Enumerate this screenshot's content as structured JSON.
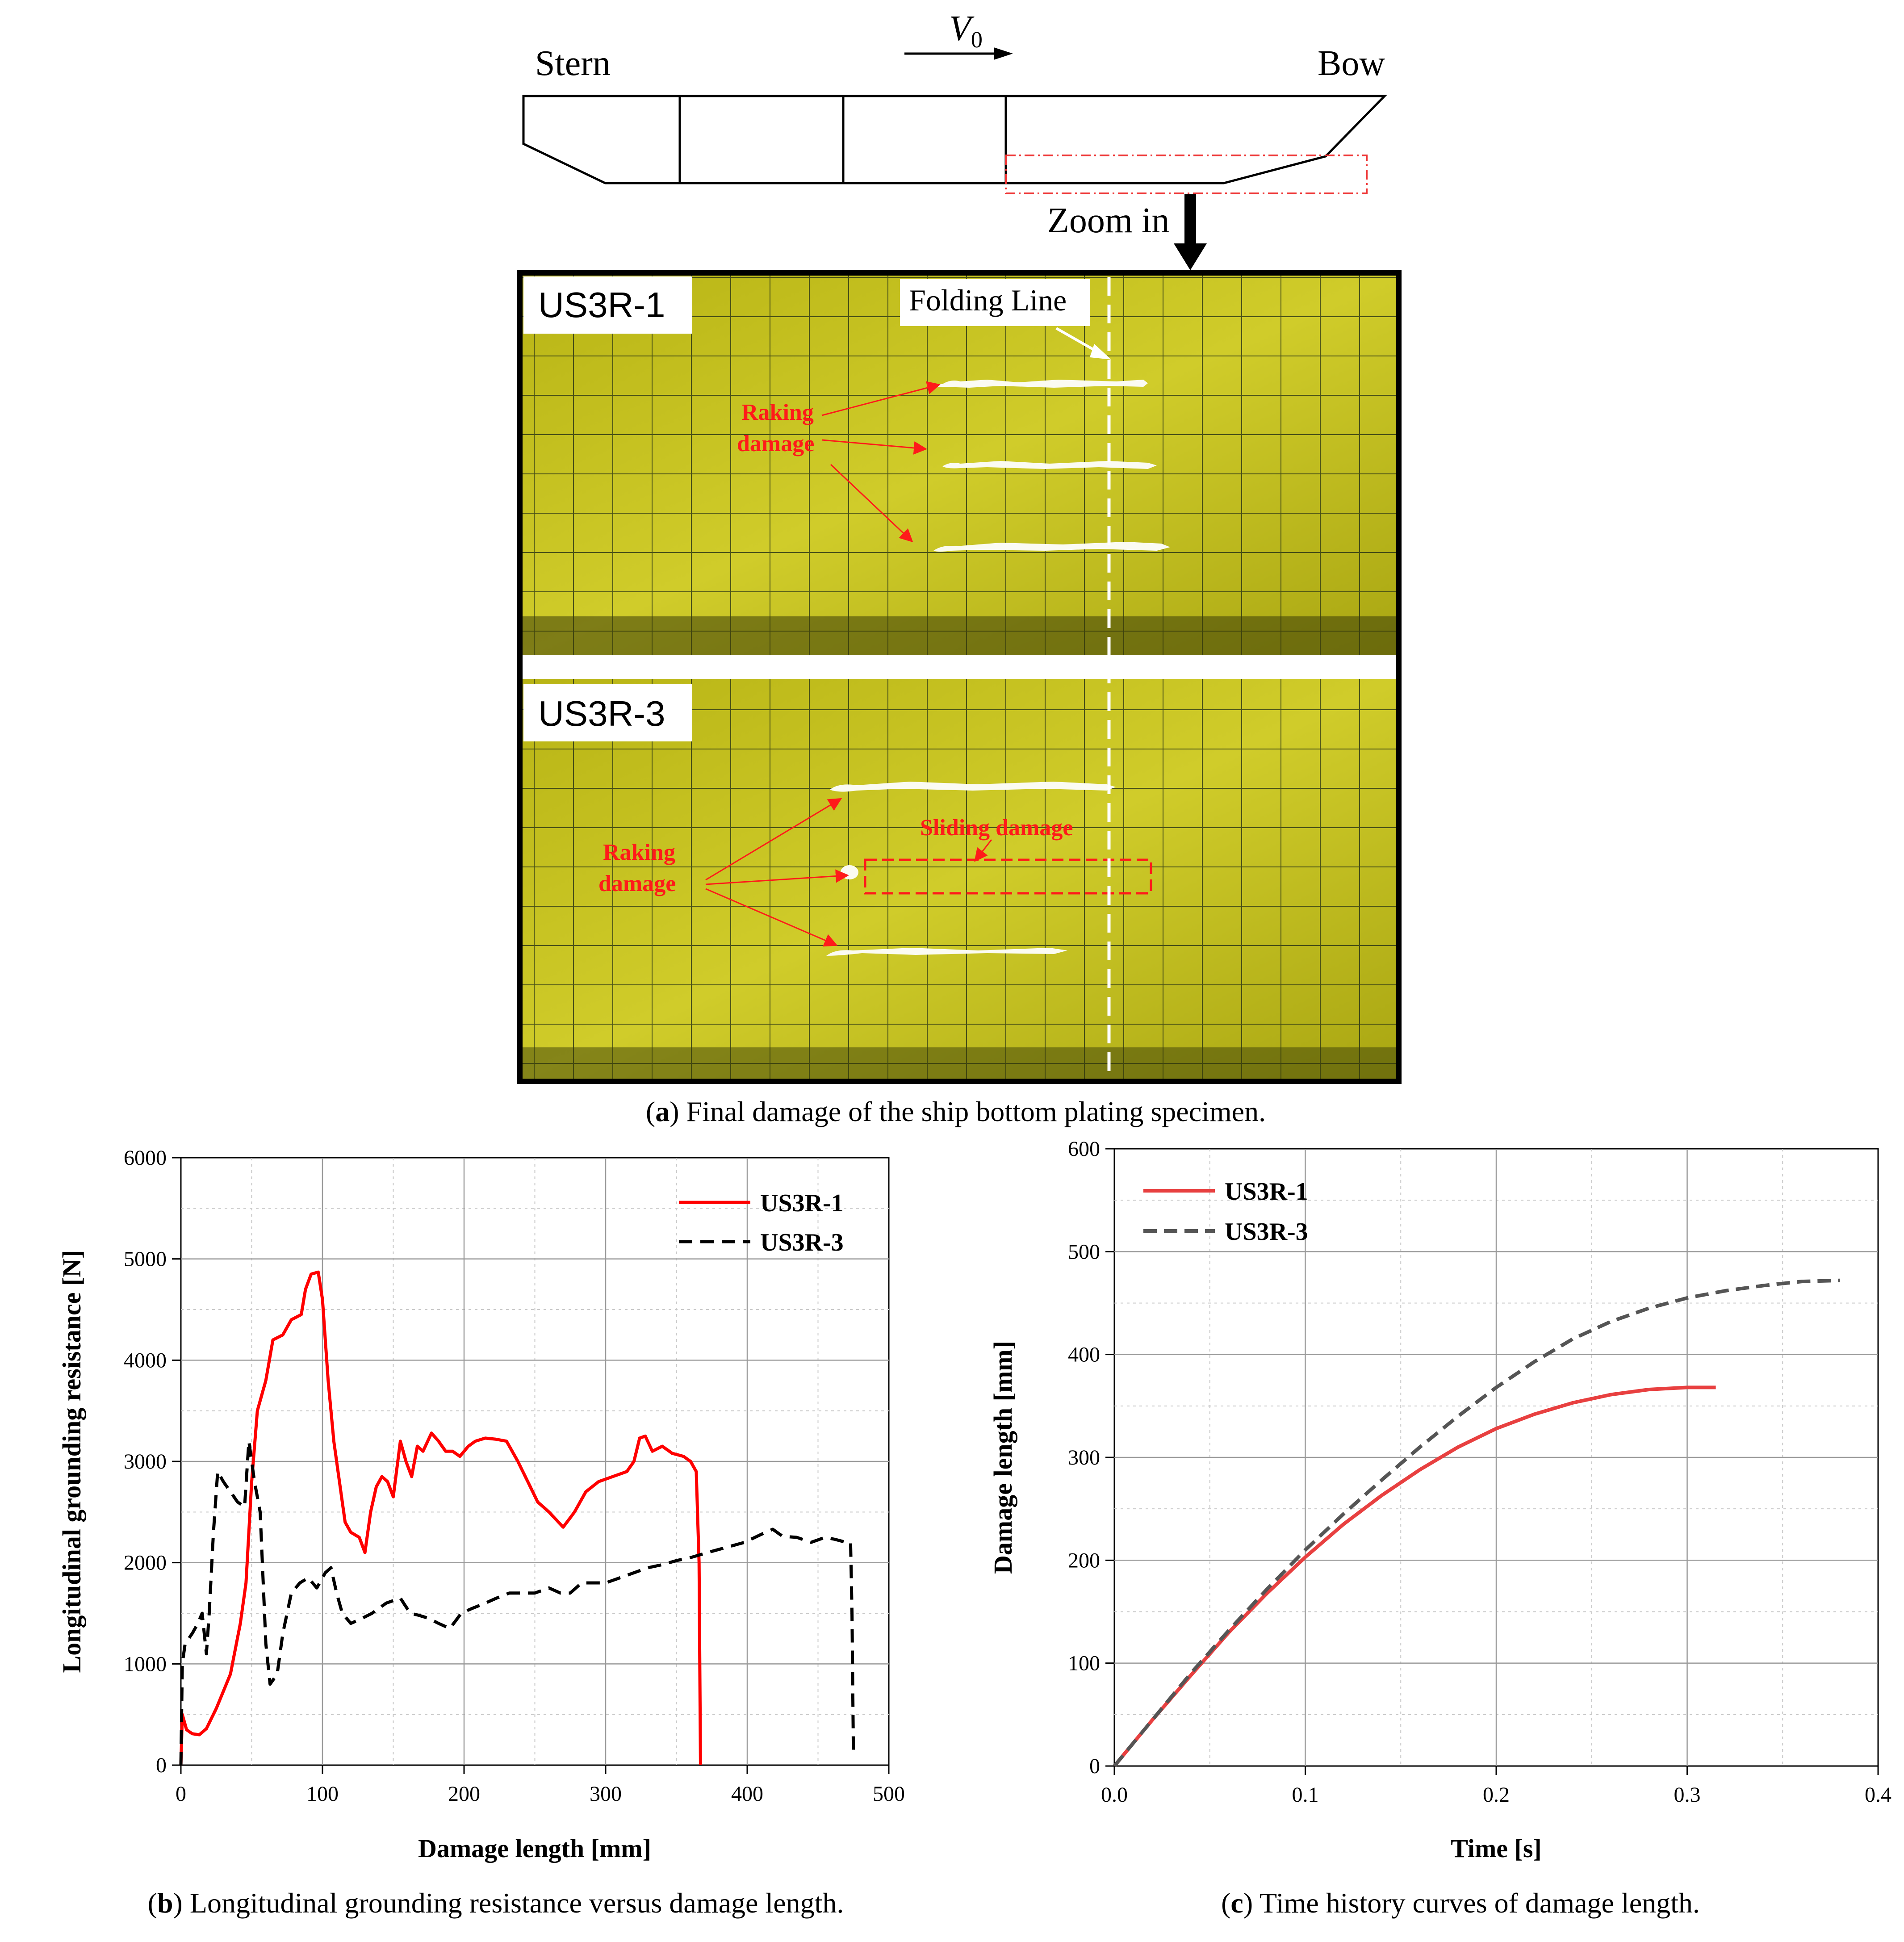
{
  "panel_a": {
    "diagram": {
      "velocity_label": "V",
      "velocity_subscript": "0",
      "stern_label": "Stern",
      "bow_label": "Bow",
      "zoom_label": "Zoom in"
    },
    "photo_labels": {
      "top_specimen": "US3R-1",
      "bottom_specimen": "US3R-3",
      "folding_line": "Folding Line",
      "raking_damage_line1": "Raking",
      "raking_damage_line2": "damage",
      "sliding_damage": "Sliding damage"
    },
    "caption_letter": "a",
    "caption_text": " Final damage of the ship bottom plating specimen."
  },
  "panel_b": {
    "caption_letter": "b",
    "caption_text": " Longitudinal grounding resistance versus damage length."
  },
  "panel_c": {
    "caption_letter": "c",
    "caption_text": " Time history curves of damage length."
  },
  "colors": {
    "us3r1": "#ff0000",
    "us3r3": "#000000",
    "us3r1_c": "#e84040",
    "us3r3_c": "#555555",
    "plate": "#c6c21c",
    "red_note": "#ff1a1a"
  },
  "chart_data": [
    {
      "id": "b",
      "type": "line",
      "title": "",
      "xlabel": "Damage length [mm]",
      "ylabel": "Longitudinal grounding resistance [N]",
      "xlim": [
        0,
        500
      ],
      "ylim": [
        0,
        6000
      ],
      "xticks": [
        0,
        100,
        200,
        300,
        400,
        500
      ],
      "yticks": [
        0,
        1000,
        2000,
        3000,
        4000,
        5000,
        6000
      ],
      "grid": true,
      "legend": "top-right",
      "series": [
        {
          "name": "US3R-1",
          "style": "solid",
          "points": [
            [
              0,
              0
            ],
            [
              1,
              500
            ],
            [
              4,
              350
            ],
            [
              8,
              310
            ],
            [
              13,
              300
            ],
            [
              18,
              360
            ],
            [
              25,
              560
            ],
            [
              35,
              900
            ],
            [
              42,
              1400
            ],
            [
              46,
              1800
            ],
            [
              50,
              2800
            ],
            [
              54,
              3500
            ],
            [
              60,
              3800
            ],
            [
              65,
              4200
            ],
            [
              72,
              4250
            ],
            [
              78,
              4400
            ],
            [
              85,
              4450
            ],
            [
              88,
              4700
            ],
            [
              92,
              4850
            ],
            [
              97,
              4870
            ],
            [
              100,
              4600
            ],
            [
              104,
              3800
            ],
            [
              108,
              3200
            ],
            [
              112,
              2800
            ],
            [
              116,
              2400
            ],
            [
              120,
              2300
            ],
            [
              126,
              2250
            ],
            [
              130,
              2100
            ],
            [
              134,
              2500
            ],
            [
              138,
              2750
            ],
            [
              142,
              2850
            ],
            [
              146,
              2800
            ],
            [
              150,
              2650
            ],
            [
              155,
              3200
            ],
            [
              159,
              3000
            ],
            [
              163,
              2850
            ],
            [
              167,
              3150
            ],
            [
              171,
              3100
            ],
            [
              177,
              3280
            ],
            [
              182,
              3200
            ],
            [
              187,
              3100
            ],
            [
              192,
              3100
            ],
            [
              197,
              3050
            ],
            [
              203,
              3150
            ],
            [
              208,
              3200
            ],
            [
              215,
              3230
            ],
            [
              222,
              3220
            ],
            [
              230,
              3200
            ],
            [
              238,
              3000
            ],
            [
              245,
              2800
            ],
            [
              252,
              2600
            ],
            [
              260,
              2500
            ],
            [
              270,
              2350
            ],
            [
              278,
              2500
            ],
            [
              286,
              2700
            ],
            [
              295,
              2800
            ],
            [
              305,
              2850
            ],
            [
              315,
              2900
            ],
            [
              320,
              3000
            ],
            [
              324,
              3230
            ],
            [
              328,
              3250
            ],
            [
              333,
              3100
            ],
            [
              340,
              3150
            ],
            [
              347,
              3080
            ],
            [
              355,
              3050
            ],
            [
              360,
              3000
            ],
            [
              364,
              2900
            ],
            [
              366,
              2000
            ],
            [
              367,
              0
            ]
          ]
        },
        {
          "name": "US3R-3",
          "style": "dashed",
          "points": [
            [
              0,
              0
            ],
            [
              1,
              1000
            ],
            [
              3,
              1200
            ],
            [
              8,
              1300
            ],
            [
              12,
              1400
            ],
            [
              15,
              1500
            ],
            [
              18,
              1100
            ],
            [
              20,
              1500
            ],
            [
              23,
              2300
            ],
            [
              26,
              2900
            ],
            [
              30,
              2800
            ],
            [
              35,
              2700
            ],
            [
              40,
              2600
            ],
            [
              45,
              2550
            ],
            [
              48,
              3200
            ],
            [
              52,
              2800
            ],
            [
              56,
              2500
            ],
            [
              60,
              1200
            ],
            [
              63,
              800
            ],
            [
              68,
              900
            ],
            [
              72,
              1300
            ],
            [
              78,
              1700
            ],
            [
              84,
              1800
            ],
            [
              90,
              1850
            ],
            [
              96,
              1750
            ],
            [
              102,
              1900
            ],
            [
              106,
              1950
            ],
            [
              110,
              1700
            ],
            [
              114,
              1500
            ],
            [
              120,
              1400
            ],
            [
              128,
              1450
            ],
            [
              135,
              1500
            ],
            [
              145,
              1600
            ],
            [
              155,
              1650
            ],
            [
              162,
              1500
            ],
            [
              168,
              1480
            ],
            [
              175,
              1450
            ],
            [
              182,
              1400
            ],
            [
              190,
              1350
            ],
            [
              198,
              1500
            ],
            [
              206,
              1550
            ],
            [
              215,
              1600
            ],
            [
              223,
              1650
            ],
            [
              232,
              1700
            ],
            [
              240,
              1700
            ],
            [
              250,
              1700
            ],
            [
              260,
              1750
            ],
            [
              268,
              1700
            ],
            [
              275,
              1700
            ],
            [
              283,
              1800
            ],
            [
              292,
              1800
            ],
            [
              300,
              1800
            ],
            [
              310,
              1850
            ],
            [
              320,
              1900
            ],
            [
              330,
              1950
            ],
            [
              340,
              1980
            ],
            [
              350,
              2020
            ],
            [
              360,
              2050
            ],
            [
              372,
              2100
            ],
            [
              385,
              2150
            ],
            [
              398,
              2200
            ],
            [
              410,
              2280
            ],
            [
              418,
              2330
            ],
            [
              425,
              2260
            ],
            [
              435,
              2250
            ],
            [
              445,
              2200
            ],
            [
              455,
              2250
            ],
            [
              462,
              2230
            ],
            [
              470,
              2200
            ],
            [
              473,
              2200
            ],
            [
              474,
              1500
            ],
            [
              475,
              100
            ]
          ]
        }
      ]
    },
    {
      "id": "c",
      "type": "line",
      "title": "",
      "xlabel": "Time [s]",
      "ylabel": "Damage length [mm]",
      "xlim": [
        0,
        0.4
      ],
      "ylim": [
        0,
        600
      ],
      "xticks": [
        0.0,
        0.1,
        0.2,
        0.3,
        0.4
      ],
      "yticks": [
        0,
        100,
        200,
        300,
        400,
        500,
        600
      ],
      "grid": true,
      "legend": "top-left",
      "series": [
        {
          "name": "US3R-1",
          "style": "solid",
          "points": [
            [
              0,
              0
            ],
            [
              0.02,
              45
            ],
            [
              0.04,
              88
            ],
            [
              0.06,
              130
            ],
            [
              0.08,
              168
            ],
            [
              0.1,
              203
            ],
            [
              0.12,
              235
            ],
            [
              0.14,
              263
            ],
            [
              0.16,
              288
            ],
            [
              0.18,
              310
            ],
            [
              0.2,
              328
            ],
            [
              0.22,
              342
            ],
            [
              0.24,
              353
            ],
            [
              0.26,
              361
            ],
            [
              0.28,
              366
            ],
            [
              0.3,
              368
            ],
            [
              0.315,
              368
            ]
          ]
        },
        {
          "name": "US3R-3",
          "style": "dashed",
          "points": [
            [
              0,
              0
            ],
            [
              0.02,
              45
            ],
            [
              0.04,
              90
            ],
            [
              0.06,
              132
            ],
            [
              0.08,
              172
            ],
            [
              0.1,
              210
            ],
            [
              0.12,
              245
            ],
            [
              0.14,
              278
            ],
            [
              0.16,
              310
            ],
            [
              0.18,
              340
            ],
            [
              0.2,
              368
            ],
            [
              0.22,
              393
            ],
            [
              0.24,
              415
            ],
            [
              0.26,
              432
            ],
            [
              0.28,
              445
            ],
            [
              0.3,
              455
            ],
            [
              0.32,
              462
            ],
            [
              0.34,
              467
            ],
            [
              0.36,
              471
            ],
            [
              0.38,
              472
            ]
          ]
        }
      ]
    }
  ]
}
